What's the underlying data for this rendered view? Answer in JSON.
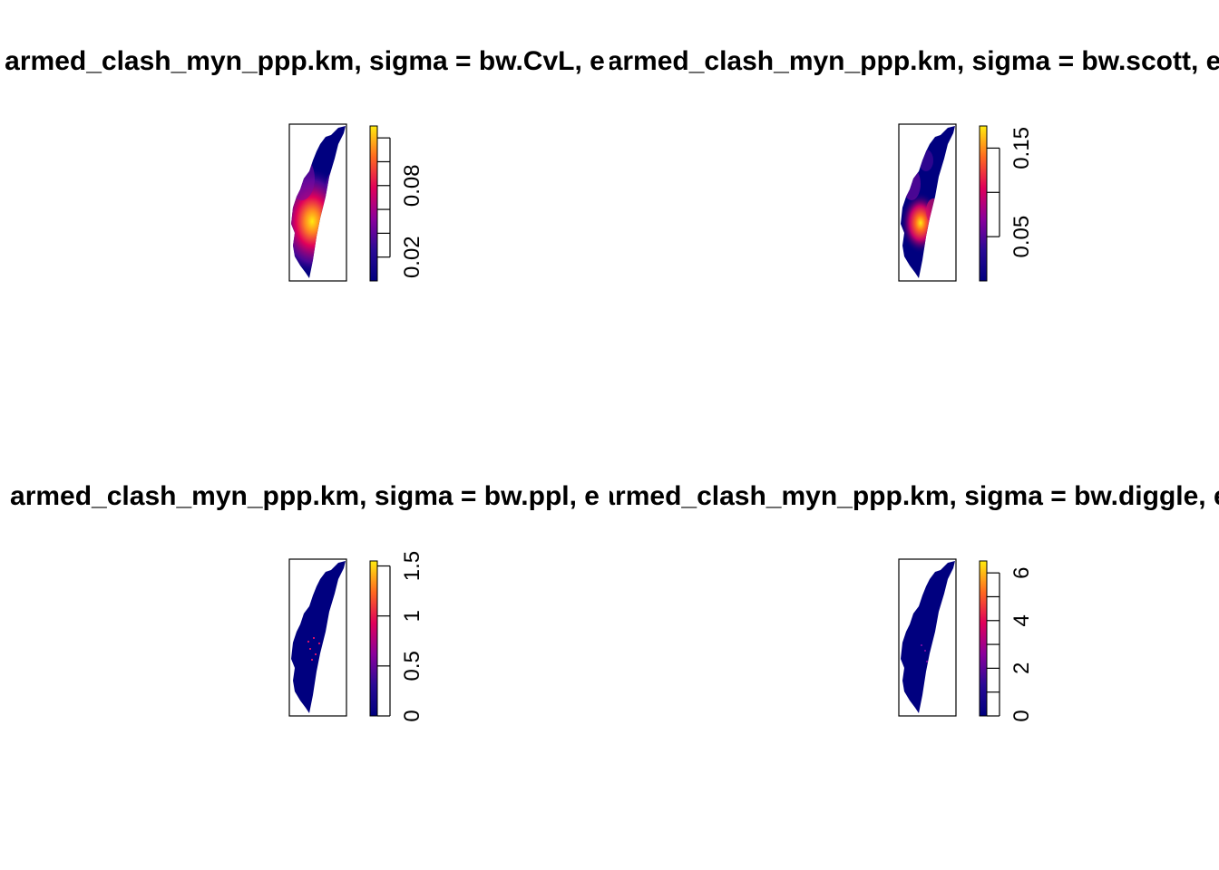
{
  "chart_data": [
    {
      "type": "heatmap",
      "title": "armed_clash_myn_ppp.km, sigma = bw.CvL, e",
      "colorbar": {
        "ticks": [
          0.02,
          0.08
        ],
        "minor_ticks": [
          0.02,
          0.04,
          0.06,
          0.08,
          0.1,
          0.12
        ],
        "range": [
          0.0,
          0.13
        ]
      },
      "hotspot": {
        "cy": 0.62,
        "cx": 0.4,
        "level": 1.0,
        "spread": "wide"
      }
    },
    {
      "type": "heatmap",
      "title": "armed_clash_myn_ppp.km, sigma = bw.scott, e",
      "colorbar": {
        "ticks": [
          0.05,
          0.15
        ],
        "minor_ticks": [
          0.05,
          0.1,
          0.15
        ],
        "range": [
          0.0,
          0.175
        ]
      },
      "hotspot": {
        "cy": 0.63,
        "cx": 0.38,
        "level": 1.0,
        "spread": "medium"
      }
    },
    {
      "type": "heatmap",
      "title": "armed_clash_myn_ppp.km, sigma = bw.ppl, e",
      "colorbar": {
        "ticks": [
          0,
          0.5,
          1,
          1.5
        ],
        "tick_labels": [
          "0",
          "0.5",
          "1",
          "1.5"
        ],
        "range": [
          0,
          1.55
        ]
      },
      "hotspot": {
        "cy": 0.6,
        "cx": 0.4,
        "level": 0.6,
        "spread": "points"
      }
    },
    {
      "type": "heatmap",
      "title": "armed_clash_myn_ppp.km, sigma = bw.diggle, e",
      "colorbar": {
        "ticks": [
          0,
          2,
          4,
          6
        ],
        "tick_labels": [
          "0",
          "2",
          "4",
          "6"
        ],
        "minor_ticks": [
          0,
          1,
          2,
          3,
          4,
          5,
          6
        ],
        "range": [
          0,
          6.5
        ]
      },
      "hotspot": {
        "cy": 0.6,
        "cx": 0.4,
        "level": 0.3,
        "spread": "points"
      }
    }
  ]
}
